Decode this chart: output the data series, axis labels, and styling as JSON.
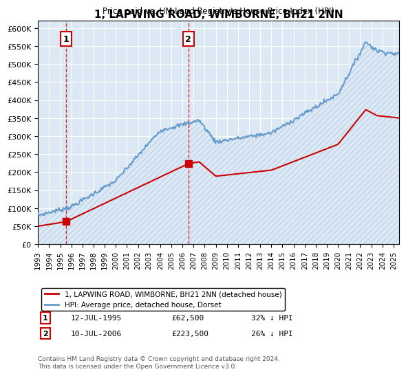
{
  "title": "1, LAPWING ROAD, WIMBORNE, BH21 2NN",
  "subtitle": "Price paid vs. HM Land Registry's House Price Index (HPI)",
  "property_label": "1, LAPWING ROAD, WIMBORNE, BH21 2NN (detached house)",
  "hpi_label": "HPI: Average price, detached house, Dorset",
  "sale1_date": "12-JUL-1995",
  "sale1_price": 62500,
  "sale1_hpi": "32% ↓ HPI",
  "sale1_x": 1995.53,
  "sale2_date": "10-JUL-2006",
  "sale2_price": 223500,
  "sale2_hpi": "26% ↓ HPI",
  "sale2_x": 2006.53,
  "ylim": [
    0,
    620000
  ],
  "yticks": [
    0,
    50000,
    100000,
    150000,
    200000,
    250000,
    300000,
    350000,
    400000,
    450000,
    500000,
    550000,
    600000
  ],
  "xlim": [
    1993,
    2025.5
  ],
  "xticks": [
    1993,
    1994,
    1995,
    1996,
    1997,
    1998,
    1999,
    2000,
    2001,
    2002,
    2003,
    2004,
    2005,
    2006,
    2007,
    2008,
    2009,
    2010,
    2011,
    2012,
    2013,
    2014,
    2015,
    2016,
    2017,
    2018,
    2019,
    2020,
    2021,
    2022,
    2023,
    2024,
    2025
  ],
  "background_color": "#dce9f5",
  "hatch_color": "#c0d4e8",
  "property_color": "#cc0000",
  "hpi_color": "#6699cc",
  "sale_marker_color": "#cc0000",
  "vline_color": "#cc0000",
  "footnote": "Contains HM Land Registry data © Crown copyright and database right 2024.\nThis data is licensed under the Open Government Licence v3.0."
}
